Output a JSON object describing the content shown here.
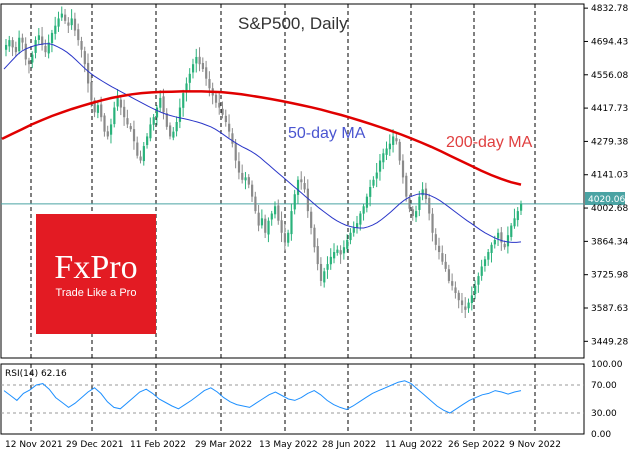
{
  "chart_data": [
    {
      "type": "candlestick",
      "title": "S&P500, Daily",
      "ylim": [
        3380,
        4850
      ],
      "y_ticks": [
        "4832.78",
        "4694.43",
        "4556.08",
        "4417.73",
        "4279.38",
        "4141.03",
        "4002.68",
        "3864.34",
        "3725.98",
        "3587.63",
        "3449.28"
      ],
      "x_ticks": [
        "12 Nov 2021",
        "29 Dec 2021",
        "11 Feb 2022",
        "29 Mar 2022",
        "13 May 2022",
        "28 Jun 2022",
        "11 Aug 2022",
        "26 Sep 2022",
        "9 Nov 2022"
      ],
      "current_price": "4020.06",
      "annotations": {
        "ma50": "50-day MA",
        "ma200": "200-day MA"
      },
      "series": [
        {
          "name": "S&P500",
          "values": [
            4680,
            4700,
            4670,
            4650,
            4710,
            4690,
            4620,
            4600,
            4640,
            4700,
            4720,
            4680,
            4650,
            4690,
            4730,
            4760,
            4790,
            4810,
            4780,
            4760,
            4790,
            4740,
            4700,
            4660,
            4600,
            4520,
            4450,
            4400,
            4430,
            4380,
            4320,
            4300,
            4350,
            4420,
            4460,
            4420,
            4380,
            4350,
            4330,
            4280,
            4220,
            4200,
            4260,
            4300,
            4350,
            4380,
            4420,
            4460,
            4400,
            4340,
            4300,
            4320,
            4360,
            4420,
            4480,
            4520,
            4560,
            4600,
            4630,
            4600,
            4580,
            4540,
            4500,
            4470,
            4440,
            4420,
            4390,
            4360,
            4320,
            4270,
            4200,
            4150,
            4120,
            4130,
            4100,
            4050,
            3990,
            3930,
            3960,
            3900,
            3950,
            3980,
            4010,
            3950,
            3900,
            3860,
            3900,
            3990,
            4060,
            4120,
            4110,
            4080,
            3990,
            3920,
            3840,
            3770,
            3700,
            3740,
            3770,
            3800,
            3820,
            3830,
            3810,
            3840,
            3870,
            3900,
            3920,
            3940,
            3980,
            4010,
            4050,
            4090,
            4120,
            4150,
            4200,
            4230,
            4250,
            4270,
            4300,
            4280,
            4200,
            4130,
            4050,
            4000,
            3970,
            3990,
            4050,
            4080,
            4040,
            3980,
            3900,
            3850,
            3820,
            3780,
            3750,
            3700,
            3680,
            3650,
            3620,
            3600,
            3580,
            3610,
            3640,
            3680,
            3720,
            3760,
            3790,
            3820,
            3850,
            3870,
            3900,
            3860,
            3840,
            3890,
            3930,
            3960,
            3990,
            4020
          ]
        },
        {
          "name": "50-day MA",
          "values": [
            4580,
            4600,
            4620,
            4640,
            4655,
            4665,
            4672,
            4678,
            4682,
            4685,
            4685,
            4680,
            4672,
            4662,
            4650,
            4635,
            4618,
            4600,
            4582,
            4566,
            4552,
            4540,
            4528,
            4517,
            4506,
            4496,
            4486,
            4476,
            4466,
            4456,
            4446,
            4436,
            4426,
            4417,
            4408,
            4400,
            4393,
            4387,
            4382,
            4378,
            4374,
            4370,
            4365,
            4360,
            4354,
            4347,
            4340,
            4330,
            4318,
            4305,
            4292,
            4280,
            4268,
            4257,
            4248,
            4238,
            4226,
            4212,
            4196,
            4180,
            4164,
            4148,
            4132,
            4116,
            4100,
            4084,
            4068,
            4052,
            4036,
            4020,
            4004,
            3990,
            3976,
            3962,
            3950,
            3940,
            3932,
            3926,
            3922,
            3920,
            3920,
            3925,
            3932,
            3942,
            3955,
            3970,
            3986,
            4003,
            4020,
            4035,
            4046,
            4054,
            4060,
            4062,
            4060,
            4053,
            4044,
            4033,
            4020,
            4006,
            3992,
            3978,
            3964,
            3950,
            3938,
            3925,
            3912,
            3900,
            3890,
            3880,
            3872,
            3866,
            3862,
            3860,
            3860,
            3862
          ]
        },
        {
          "name": "200-day MA",
          "values": [
            4290,
            4310,
            4330,
            4350,
            4368,
            4385,
            4400,
            4414,
            4427,
            4439,
            4450,
            4460,
            4468,
            4475,
            4480,
            4483,
            4485,
            4486,
            4487,
            4487,
            4487,
            4486,
            4484,
            4480,
            4475,
            4469,
            4462,
            4455,
            4447,
            4439,
            4430,
            4421,
            4411,
            4400,
            4389,
            4377,
            4364,
            4351,
            4337,
            4323,
            4308,
            4292,
            4275,
            4257,
            4238,
            4218,
            4198,
            4178,
            4158,
            4140,
            4124,
            4110,
            4100
          ]
        },
        {
          "name": "RSI(14) 62.16",
          "values": [
            62,
            55,
            48,
            58,
            63,
            70,
            72,
            64,
            52,
            45,
            38,
            44,
            52,
            60,
            66,
            58,
            46,
            38,
            36,
            44,
            52,
            60,
            64,
            58,
            50,
            45,
            40,
            36,
            42,
            48,
            55,
            62,
            66,
            60,
            52,
            46,
            42,
            40,
            38,
            44,
            50,
            56,
            60,
            55,
            50,
            48,
            52,
            58,
            62,
            56,
            48,
            42,
            38,
            35,
            40,
            46,
            52,
            58,
            62,
            66,
            70,
            74,
            76,
            72,
            64,
            56,
            48,
            40,
            34,
            30,
            36,
            42,
            48,
            52,
            56,
            58,
            62,
            60,
            57,
            60,
            62
          ]
        }
      ]
    }
  ],
  "watermark": {
    "logo": "FxPro",
    "tagline": "Trade Like a Pro"
  },
  "rsi": {
    "label": "RSI(14) 62.16",
    "ticks": [
      "100.00",
      "70.00",
      "30.00",
      "0.00"
    ]
  },
  "colors": {
    "up": "#2ab27b",
    "down": "#8a8a8a",
    "ma50": "#2a36c8",
    "ma200": "#e00000",
    "rsi": "#1e90ff",
    "price_line": "#4aa3a3",
    "logo_bg": "#e31b23"
  }
}
